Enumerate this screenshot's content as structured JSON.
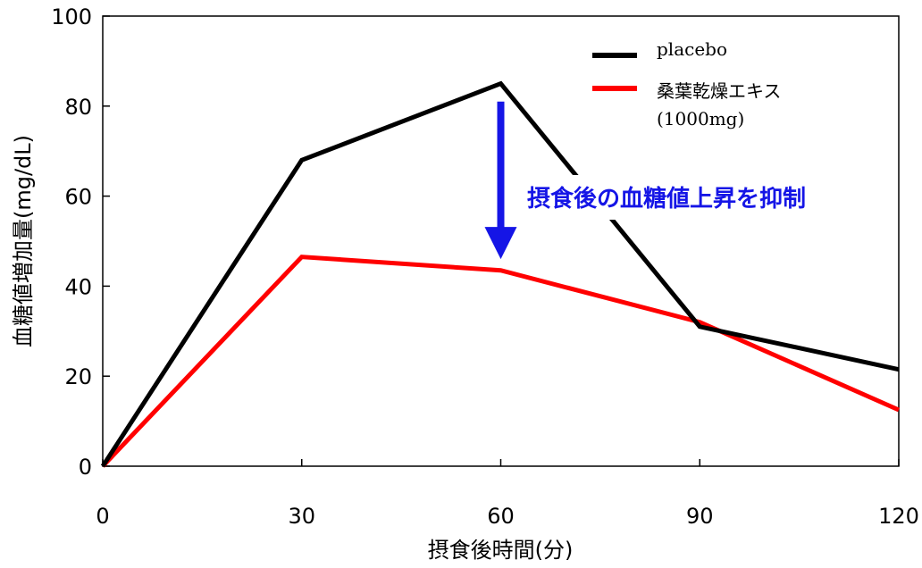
{
  "chart_data": {
    "type": "line",
    "xlabel": "摂食後時間(分)",
    "ylabel": "血糖値増加量(mg/dL)",
    "x": [
      0,
      30,
      60,
      90,
      120
    ],
    "xlim": [
      0,
      120
    ],
    "ylim": [
      0,
      100
    ],
    "xticks": [
      "0",
      "30",
      "60",
      "90",
      "120"
    ],
    "yticks": [
      "0",
      "20",
      "40",
      "60",
      "80",
      "100"
    ],
    "grid": false,
    "legend_position": "top-right",
    "series": [
      {
        "name": "placebo",
        "color": "#000000",
        "values": [
          0,
          68,
          85,
          31,
          21.5
        ]
      },
      {
        "name": "桑葉乾燥エキス",
        "name_line2": "(1000mg)",
        "color": "#ff0000",
        "values": [
          0,
          46.5,
          43.5,
          32,
          12.5
        ]
      }
    ],
    "annotation": {
      "text": "摂食後の血糖値上昇を抑制",
      "color": "#1515e6",
      "arrow_x": 60,
      "arrow_from": 81,
      "arrow_to": 46
    }
  }
}
